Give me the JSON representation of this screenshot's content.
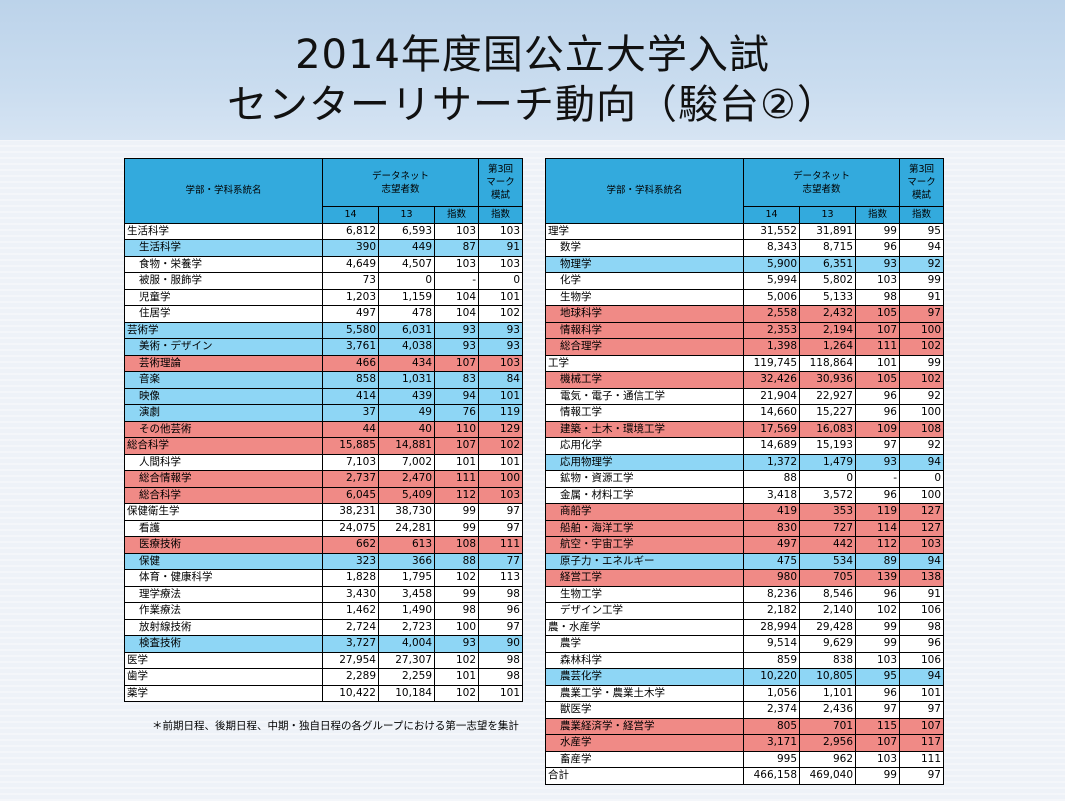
{
  "title": {
    "line1": "2014年度国公立大学入試",
    "line2": "センターリサーチ動向（駿台②）"
  },
  "headers": {
    "col_name": "学部・学科系統名",
    "datanet": "データネット\n志望者数",
    "mock": "第3回\nマーク\n模試",
    "y14": "14",
    "y13": "13",
    "idx": "指数",
    "idx2": "指数"
  },
  "left_rows": [
    {
      "name": "生活科学",
      "a": "6,812",
      "b": "6,593",
      "c": "103",
      "d": "103",
      "hl": "",
      "ind": false
    },
    {
      "name": "生活科学",
      "a": "390",
      "b": "449",
      "c": "87",
      "d": "91",
      "hl": "blue",
      "ind": true
    },
    {
      "name": "食物・栄養学",
      "a": "4,649",
      "b": "4,507",
      "c": "103",
      "d": "103",
      "hl": "",
      "ind": true
    },
    {
      "name": "被服・服飾学",
      "a": "73",
      "b": "0",
      "c": "-",
      "d": "0",
      "hl": "",
      "ind": true
    },
    {
      "name": "児童学",
      "a": "1,203",
      "b": "1,159",
      "c": "104",
      "d": "101",
      "hl": "",
      "ind": true
    },
    {
      "name": "住居学",
      "a": "497",
      "b": "478",
      "c": "104",
      "d": "102",
      "hl": "",
      "ind": true
    },
    {
      "name": "芸術学",
      "a": "5,580",
      "b": "6,031",
      "c": "93",
      "d": "93",
      "hl": "blue",
      "ind": false
    },
    {
      "name": "美術・デザイン",
      "a": "3,761",
      "b": "4,038",
      "c": "93",
      "d": "93",
      "hl": "blue",
      "ind": true
    },
    {
      "name": "芸術理論",
      "a": "466",
      "b": "434",
      "c": "107",
      "d": "103",
      "hl": "red",
      "ind": true
    },
    {
      "name": "音楽",
      "a": "858",
      "b": "1,031",
      "c": "83",
      "d": "84",
      "hl": "blue",
      "ind": true
    },
    {
      "name": "映像",
      "a": "414",
      "b": "439",
      "c": "94",
      "d": "101",
      "hl": "blue",
      "ind": true
    },
    {
      "name": "演劇",
      "a": "37",
      "b": "49",
      "c": "76",
      "d": "119",
      "hl": "blue",
      "ind": true
    },
    {
      "name": "その他芸術",
      "a": "44",
      "b": "40",
      "c": "110",
      "d": "129",
      "hl": "red",
      "ind": true
    },
    {
      "name": "総合科学",
      "a": "15,885",
      "b": "14,881",
      "c": "107",
      "d": "102",
      "hl": "red",
      "ind": false
    },
    {
      "name": "人間科学",
      "a": "7,103",
      "b": "7,002",
      "c": "101",
      "d": "101",
      "hl": "",
      "ind": true
    },
    {
      "name": "総合情報学",
      "a": "2,737",
      "b": "2,470",
      "c": "111",
      "d": "100",
      "hl": "red",
      "ind": true
    },
    {
      "name": "総合科学",
      "a": "6,045",
      "b": "5,409",
      "c": "112",
      "d": "103",
      "hl": "red",
      "ind": true
    },
    {
      "name": "保健衛生学",
      "a": "38,231",
      "b": "38,730",
      "c": "99",
      "d": "97",
      "hl": "",
      "ind": false
    },
    {
      "name": "看護",
      "a": "24,075",
      "b": "24,281",
      "c": "99",
      "d": "97",
      "hl": "",
      "ind": true
    },
    {
      "name": "医療技術",
      "a": "662",
      "b": "613",
      "c": "108",
      "d": "111",
      "hl": "red",
      "ind": true
    },
    {
      "name": "保健",
      "a": "323",
      "b": "366",
      "c": "88",
      "d": "77",
      "hl": "blue",
      "ind": true
    },
    {
      "name": "体育・健康科学",
      "a": "1,828",
      "b": "1,795",
      "c": "102",
      "d": "113",
      "hl": "",
      "ind": true
    },
    {
      "name": "理学療法",
      "a": "3,430",
      "b": "3,458",
      "c": "99",
      "d": "98",
      "hl": "",
      "ind": true
    },
    {
      "name": "作業療法",
      "a": "1,462",
      "b": "1,490",
      "c": "98",
      "d": "96",
      "hl": "",
      "ind": true
    },
    {
      "name": "放射線技術",
      "a": "2,724",
      "b": "2,723",
      "c": "100",
      "d": "97",
      "hl": "",
      "ind": true
    },
    {
      "name": "検査技術",
      "a": "3,727",
      "b": "4,004",
      "c": "93",
      "d": "90",
      "hl": "blue",
      "ind": true
    },
    {
      "name": "医学",
      "a": "27,954",
      "b": "27,307",
      "c": "102",
      "d": "98",
      "hl": "",
      "ind": false
    },
    {
      "name": "歯学",
      "a": "2,289",
      "b": "2,259",
      "c": "101",
      "d": "98",
      "hl": "",
      "ind": false
    },
    {
      "name": "薬学",
      "a": "10,422",
      "b": "10,184",
      "c": "102",
      "d": "101",
      "hl": "",
      "ind": false
    }
  ],
  "right_rows": [
    {
      "name": "理学",
      "a": "31,552",
      "b": "31,891",
      "c": "99",
      "d": "95",
      "hl": "",
      "ind": false
    },
    {
      "name": "数学",
      "a": "8,343",
      "b": "8,715",
      "c": "96",
      "d": "94",
      "hl": "",
      "ind": true
    },
    {
      "name": "物理学",
      "a": "5,900",
      "b": "6,351",
      "c": "93",
      "d": "92",
      "hl": "blue",
      "ind": true
    },
    {
      "name": "化学",
      "a": "5,994",
      "b": "5,802",
      "c": "103",
      "d": "99",
      "hl": "",
      "ind": true
    },
    {
      "name": "生物学",
      "a": "5,006",
      "b": "5,133",
      "c": "98",
      "d": "91",
      "hl": "",
      "ind": true
    },
    {
      "name": "地球科学",
      "a": "2,558",
      "b": "2,432",
      "c": "105",
      "d": "97",
      "hl": "red",
      "ind": true
    },
    {
      "name": "情報科学",
      "a": "2,353",
      "b": "2,194",
      "c": "107",
      "d": "100",
      "hl": "red",
      "ind": true
    },
    {
      "name": "総合理学",
      "a": "1,398",
      "b": "1,264",
      "c": "111",
      "d": "102",
      "hl": "red",
      "ind": true
    },
    {
      "name": "工学",
      "a": "119,745",
      "b": "118,864",
      "c": "101",
      "d": "99",
      "hl": "",
      "ind": false
    },
    {
      "name": "機械工学",
      "a": "32,426",
      "b": "30,936",
      "c": "105",
      "d": "102",
      "hl": "red",
      "ind": true
    },
    {
      "name": "電気・電子・通信工学",
      "a": "21,904",
      "b": "22,927",
      "c": "96",
      "d": "92",
      "hl": "",
      "ind": true
    },
    {
      "name": "情報工学",
      "a": "14,660",
      "b": "15,227",
      "c": "96",
      "d": "100",
      "hl": "",
      "ind": true
    },
    {
      "name": "建築・土木・環境工学",
      "a": "17,569",
      "b": "16,083",
      "c": "109",
      "d": "108",
      "hl": "red",
      "ind": true
    },
    {
      "name": "応用化学",
      "a": "14,689",
      "b": "15,193",
      "c": "97",
      "d": "92",
      "hl": "",
      "ind": true
    },
    {
      "name": "応用物理学",
      "a": "1,372",
      "b": "1,479",
      "c": "93",
      "d": "94",
      "hl": "blue",
      "ind": true
    },
    {
      "name": "鉱物・資源工学",
      "a": "88",
      "b": "0",
      "c": "-",
      "d": "0",
      "hl": "",
      "ind": true
    },
    {
      "name": "金属・材料工学",
      "a": "3,418",
      "b": "3,572",
      "c": "96",
      "d": "100",
      "hl": "",
      "ind": true
    },
    {
      "name": "商船学",
      "a": "419",
      "b": "353",
      "c": "119",
      "d": "127",
      "hl": "red",
      "ind": true
    },
    {
      "name": "船舶・海洋工学",
      "a": "830",
      "b": "727",
      "c": "114",
      "d": "127",
      "hl": "red",
      "ind": true
    },
    {
      "name": "航空・宇宙工学",
      "a": "497",
      "b": "442",
      "c": "112",
      "d": "103",
      "hl": "red",
      "ind": true
    },
    {
      "name": "原子力・エネルギー",
      "a": "475",
      "b": "534",
      "c": "89",
      "d": "94",
      "hl": "blue",
      "ind": true
    },
    {
      "name": "経営工学",
      "a": "980",
      "b": "705",
      "c": "139",
      "d": "138",
      "hl": "red",
      "ind": true
    },
    {
      "name": "生物工学",
      "a": "8,236",
      "b": "8,546",
      "c": "96",
      "d": "91",
      "hl": "",
      "ind": true
    },
    {
      "name": "デザイン工学",
      "a": "2,182",
      "b": "2,140",
      "c": "102",
      "d": "106",
      "hl": "",
      "ind": true
    },
    {
      "name": "農・水産学",
      "a": "28,994",
      "b": "29,428",
      "c": "99",
      "d": "98",
      "hl": "",
      "ind": false
    },
    {
      "name": "農学",
      "a": "9,514",
      "b": "9,629",
      "c": "99",
      "d": "96",
      "hl": "",
      "ind": true
    },
    {
      "name": "森林科学",
      "a": "859",
      "b": "838",
      "c": "103",
      "d": "106",
      "hl": "",
      "ind": true
    },
    {
      "name": "農芸化学",
      "a": "10,220",
      "b": "10,805",
      "c": "95",
      "d": "94",
      "hl": "blue",
      "ind": true
    },
    {
      "name": "農業工学・農業土木学",
      "a": "1,056",
      "b": "1,101",
      "c": "96",
      "d": "101",
      "hl": "",
      "ind": true
    },
    {
      "name": "獣医学",
      "a": "2,374",
      "b": "2,436",
      "c": "97",
      "d": "97",
      "hl": "",
      "ind": true
    },
    {
      "name": "農業経済学・経営学",
      "a": "805",
      "b": "701",
      "c": "115",
      "d": "107",
      "hl": "red",
      "ind": true
    },
    {
      "name": "水産学",
      "a": "3,171",
      "b": "2,956",
      "c": "107",
      "d": "117",
      "hl": "red",
      "ind": true
    },
    {
      "name": "畜産学",
      "a": "995",
      "b": "962",
      "c": "103",
      "d": "111",
      "hl": "",
      "ind": true
    },
    {
      "name": "合計",
      "a": "466,158",
      "b": "469,040",
      "c": "99",
      "d": "97",
      "hl": "",
      "ind": false
    }
  ],
  "footnote": "＊前期日程、後期日程、中期・独自日程の各グループにおける第一志望を集計",
  "colors": {
    "blue": "#8ed6f5",
    "red": "#f08a86",
    "header": "#33aadd"
  }
}
